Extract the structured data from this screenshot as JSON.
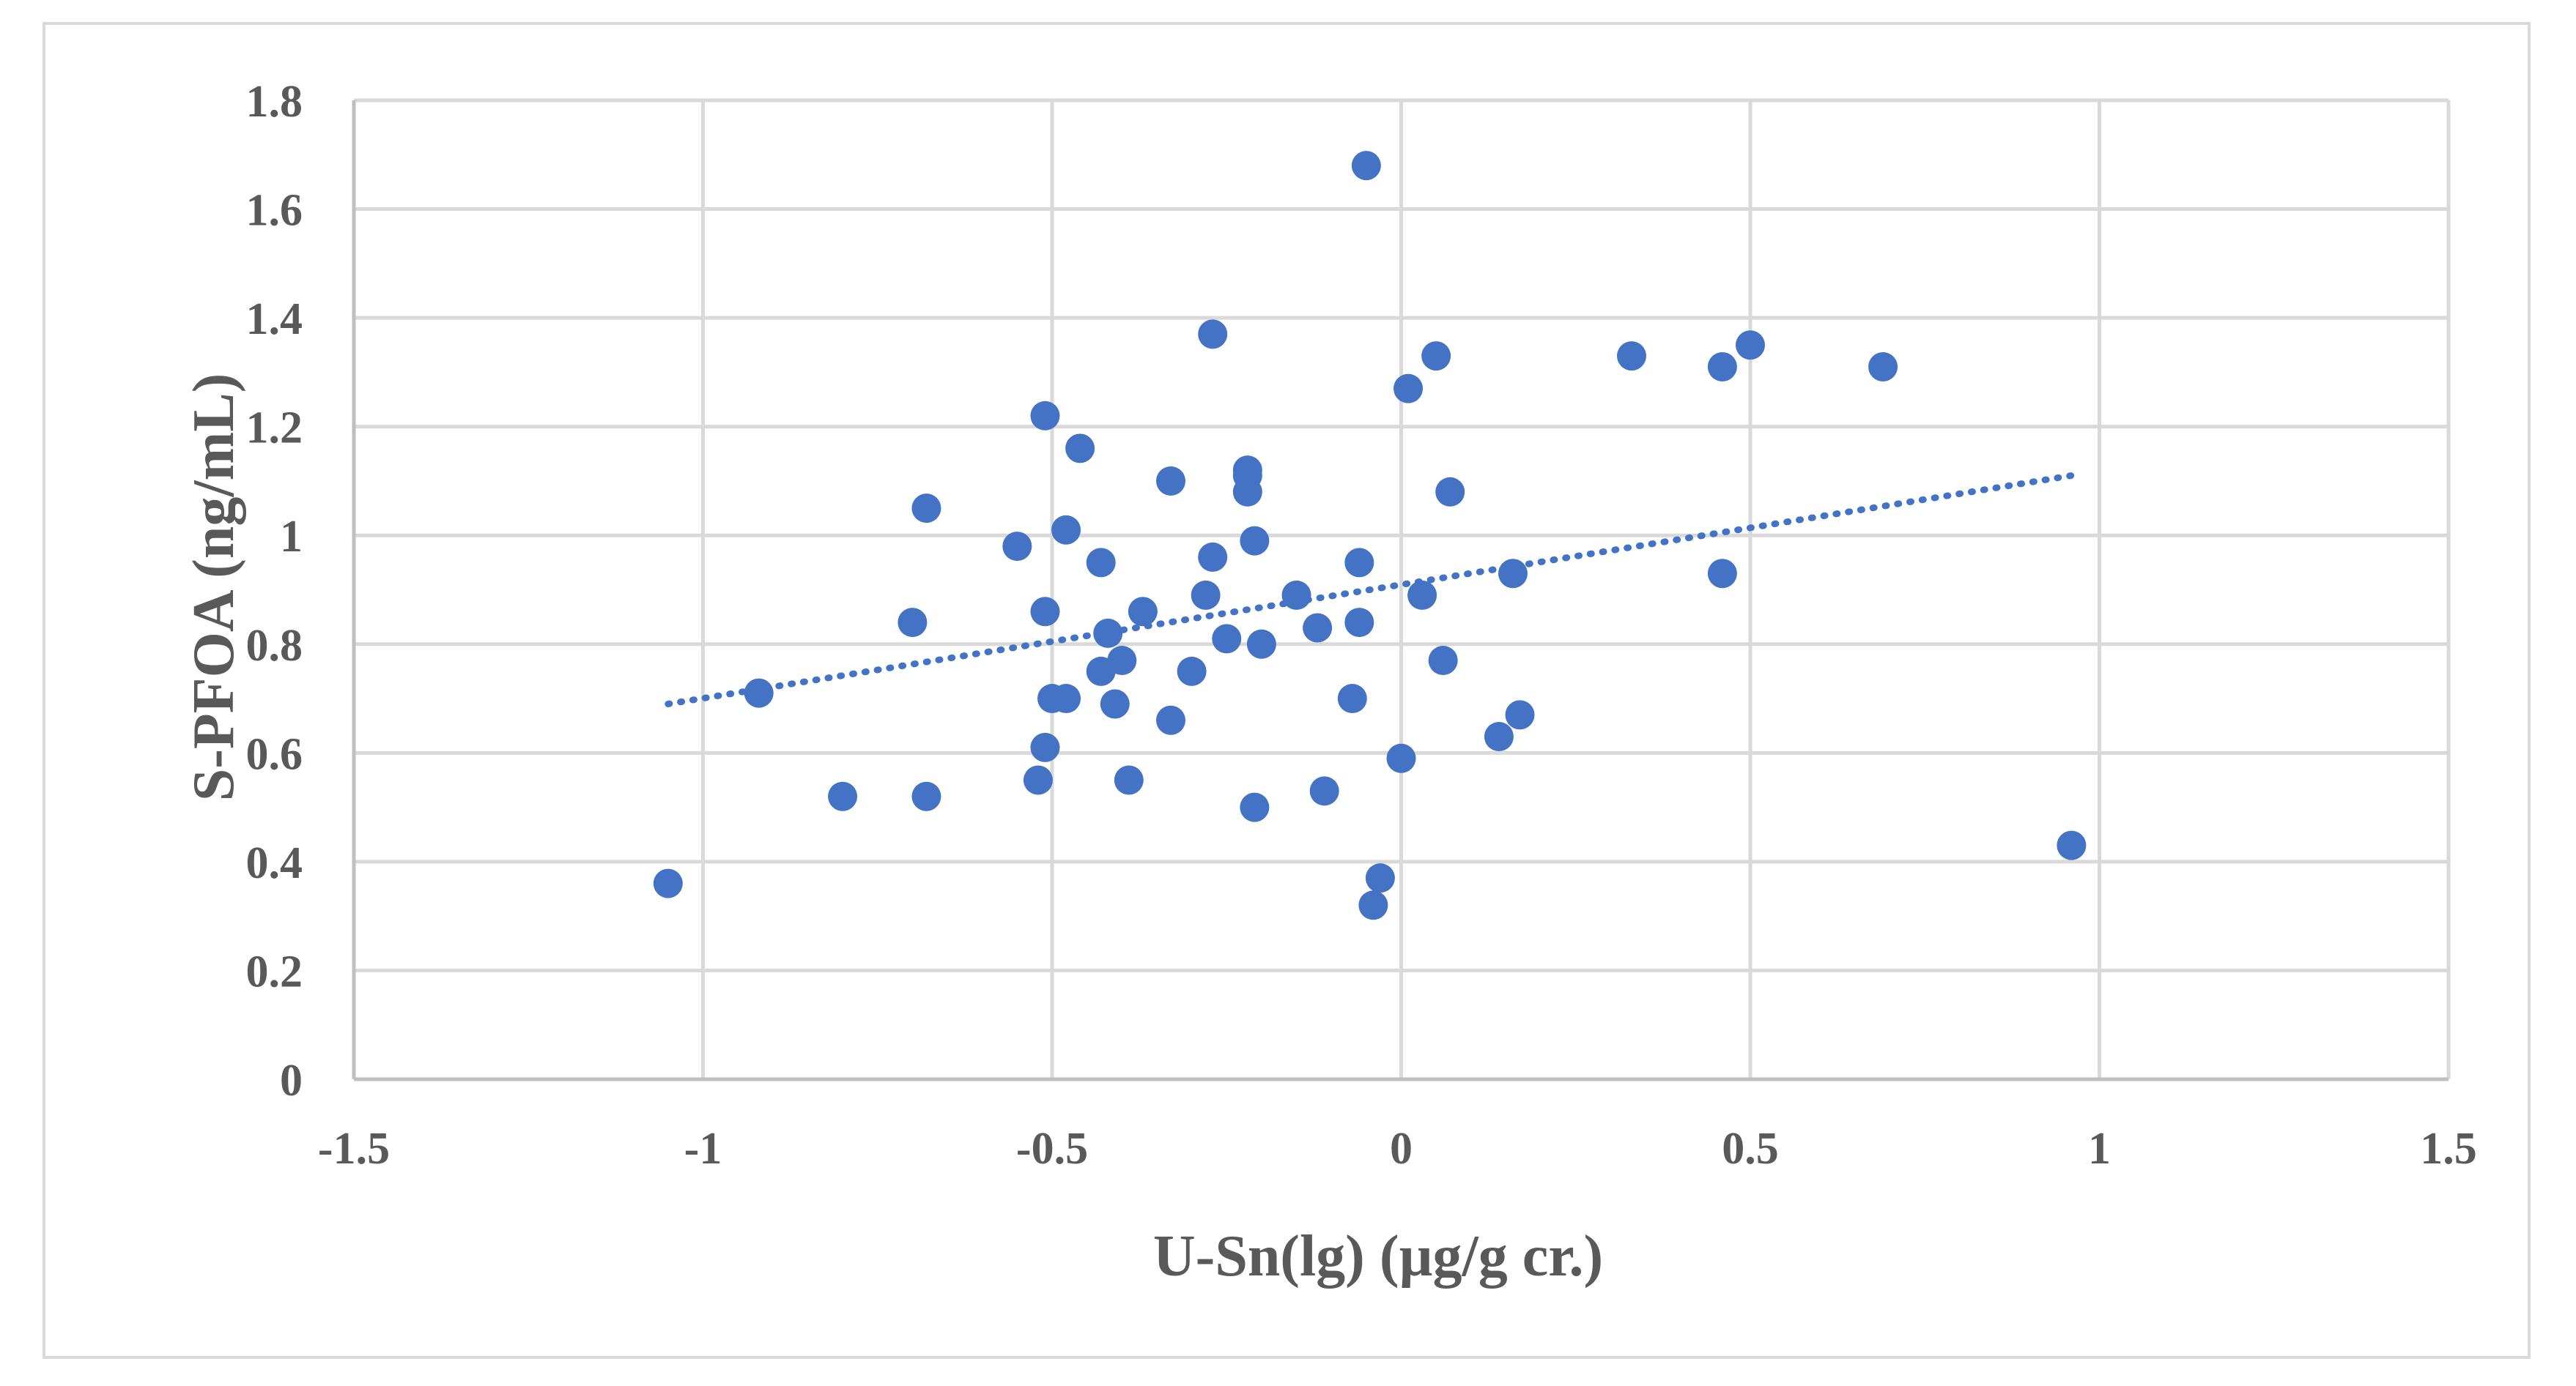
{
  "chart_data": {
    "type": "scatter",
    "title": "",
    "xlabel": "U-Sn(lg) (µg/g cr.)",
    "ylabel": "S-PFOA (ng/mL)",
    "xlim": [
      -1.5,
      1.5
    ],
    "ylim": [
      0,
      1.8
    ],
    "x_ticks": [
      -1.5,
      -1,
      -0.5,
      0,
      0.5,
      1,
      1.5
    ],
    "x_tick_labels": [
      "-1.5",
      "-1",
      "-0.5",
      "0",
      "0.5",
      "1",
      "1.5"
    ],
    "y_ticks": [
      0,
      0.2,
      0.4,
      0.6,
      0.8,
      1,
      1.2,
      1.4,
      1.6,
      1.8
    ],
    "y_tick_labels": [
      "0",
      "0.2",
      "0.4",
      "0.6",
      "0.8",
      "1",
      "1.2",
      "1.4",
      "1.6",
      "1.8"
    ],
    "grid": true,
    "legend": "none",
    "colors": {
      "points": "#4472C4",
      "trendline": "#4472C4",
      "grid": "#d9d9d9",
      "text": "#595959"
    },
    "series": [
      {
        "name": "S-PFOA",
        "points": [
          [
            -1.05,
            0.36
          ],
          [
            -0.92,
            0.71
          ],
          [
            -0.8,
            0.52
          ],
          [
            -0.7,
            0.84
          ],
          [
            -0.68,
            1.05
          ],
          [
            -0.68,
            0.52
          ],
          [
            -0.55,
            0.98
          ],
          [
            -0.52,
            0.55
          ],
          [
            -0.51,
            1.22
          ],
          [
            -0.51,
            0.86
          ],
          [
            -0.51,
            0.61
          ],
          [
            -0.5,
            0.7
          ],
          [
            -0.48,
            1.01
          ],
          [
            -0.48,
            0.7
          ],
          [
            -0.46,
            1.16
          ],
          [
            -0.43,
            0.95
          ],
          [
            -0.43,
            0.75
          ],
          [
            -0.42,
            0.82
          ],
          [
            -0.41,
            0.69
          ],
          [
            -0.4,
            0.77
          ],
          [
            -0.39,
            0.55
          ],
          [
            -0.37,
            0.86
          ],
          [
            -0.33,
            1.1
          ],
          [
            -0.33,
            0.66
          ],
          [
            -0.3,
            0.75
          ],
          [
            -0.28,
            0.89
          ],
          [
            -0.27,
            1.37
          ],
          [
            -0.27,
            0.96
          ],
          [
            -0.25,
            0.81
          ],
          [
            -0.22,
            1.11
          ],
          [
            -0.22,
            1.08
          ],
          [
            -0.22,
            1.12
          ],
          [
            -0.21,
            0.5
          ],
          [
            -0.21,
            0.99
          ],
          [
            -0.2,
            0.8
          ],
          [
            -0.15,
            0.89
          ],
          [
            -0.12,
            0.83
          ],
          [
            -0.11,
            0.53
          ],
          [
            -0.07,
            0.7
          ],
          [
            -0.06,
            0.84
          ],
          [
            -0.06,
            0.95
          ],
          [
            -0.05,
            1.68
          ],
          [
            -0.04,
            0.32
          ],
          [
            -0.03,
            0.37
          ],
          [
            0.0,
            0.59
          ],
          [
            0.01,
            1.27
          ],
          [
            0.03,
            0.89
          ],
          [
            0.05,
            1.33
          ],
          [
            0.06,
            0.77
          ],
          [
            0.07,
            1.08
          ],
          [
            0.14,
            0.63
          ],
          [
            0.16,
            0.93
          ],
          [
            0.17,
            0.67
          ],
          [
            0.33,
            1.33
          ],
          [
            0.46,
            1.31
          ],
          [
            0.46,
            0.93
          ],
          [
            0.5,
            1.35
          ],
          [
            0.69,
            1.31
          ],
          [
            0.96,
            0.43
          ]
        ]
      }
    ],
    "trendline": {
      "type": "linear",
      "style": "dotted",
      "x_start": -1.05,
      "y_start": 0.69,
      "x_end": 0.96,
      "y_end": 1.11
    }
  }
}
